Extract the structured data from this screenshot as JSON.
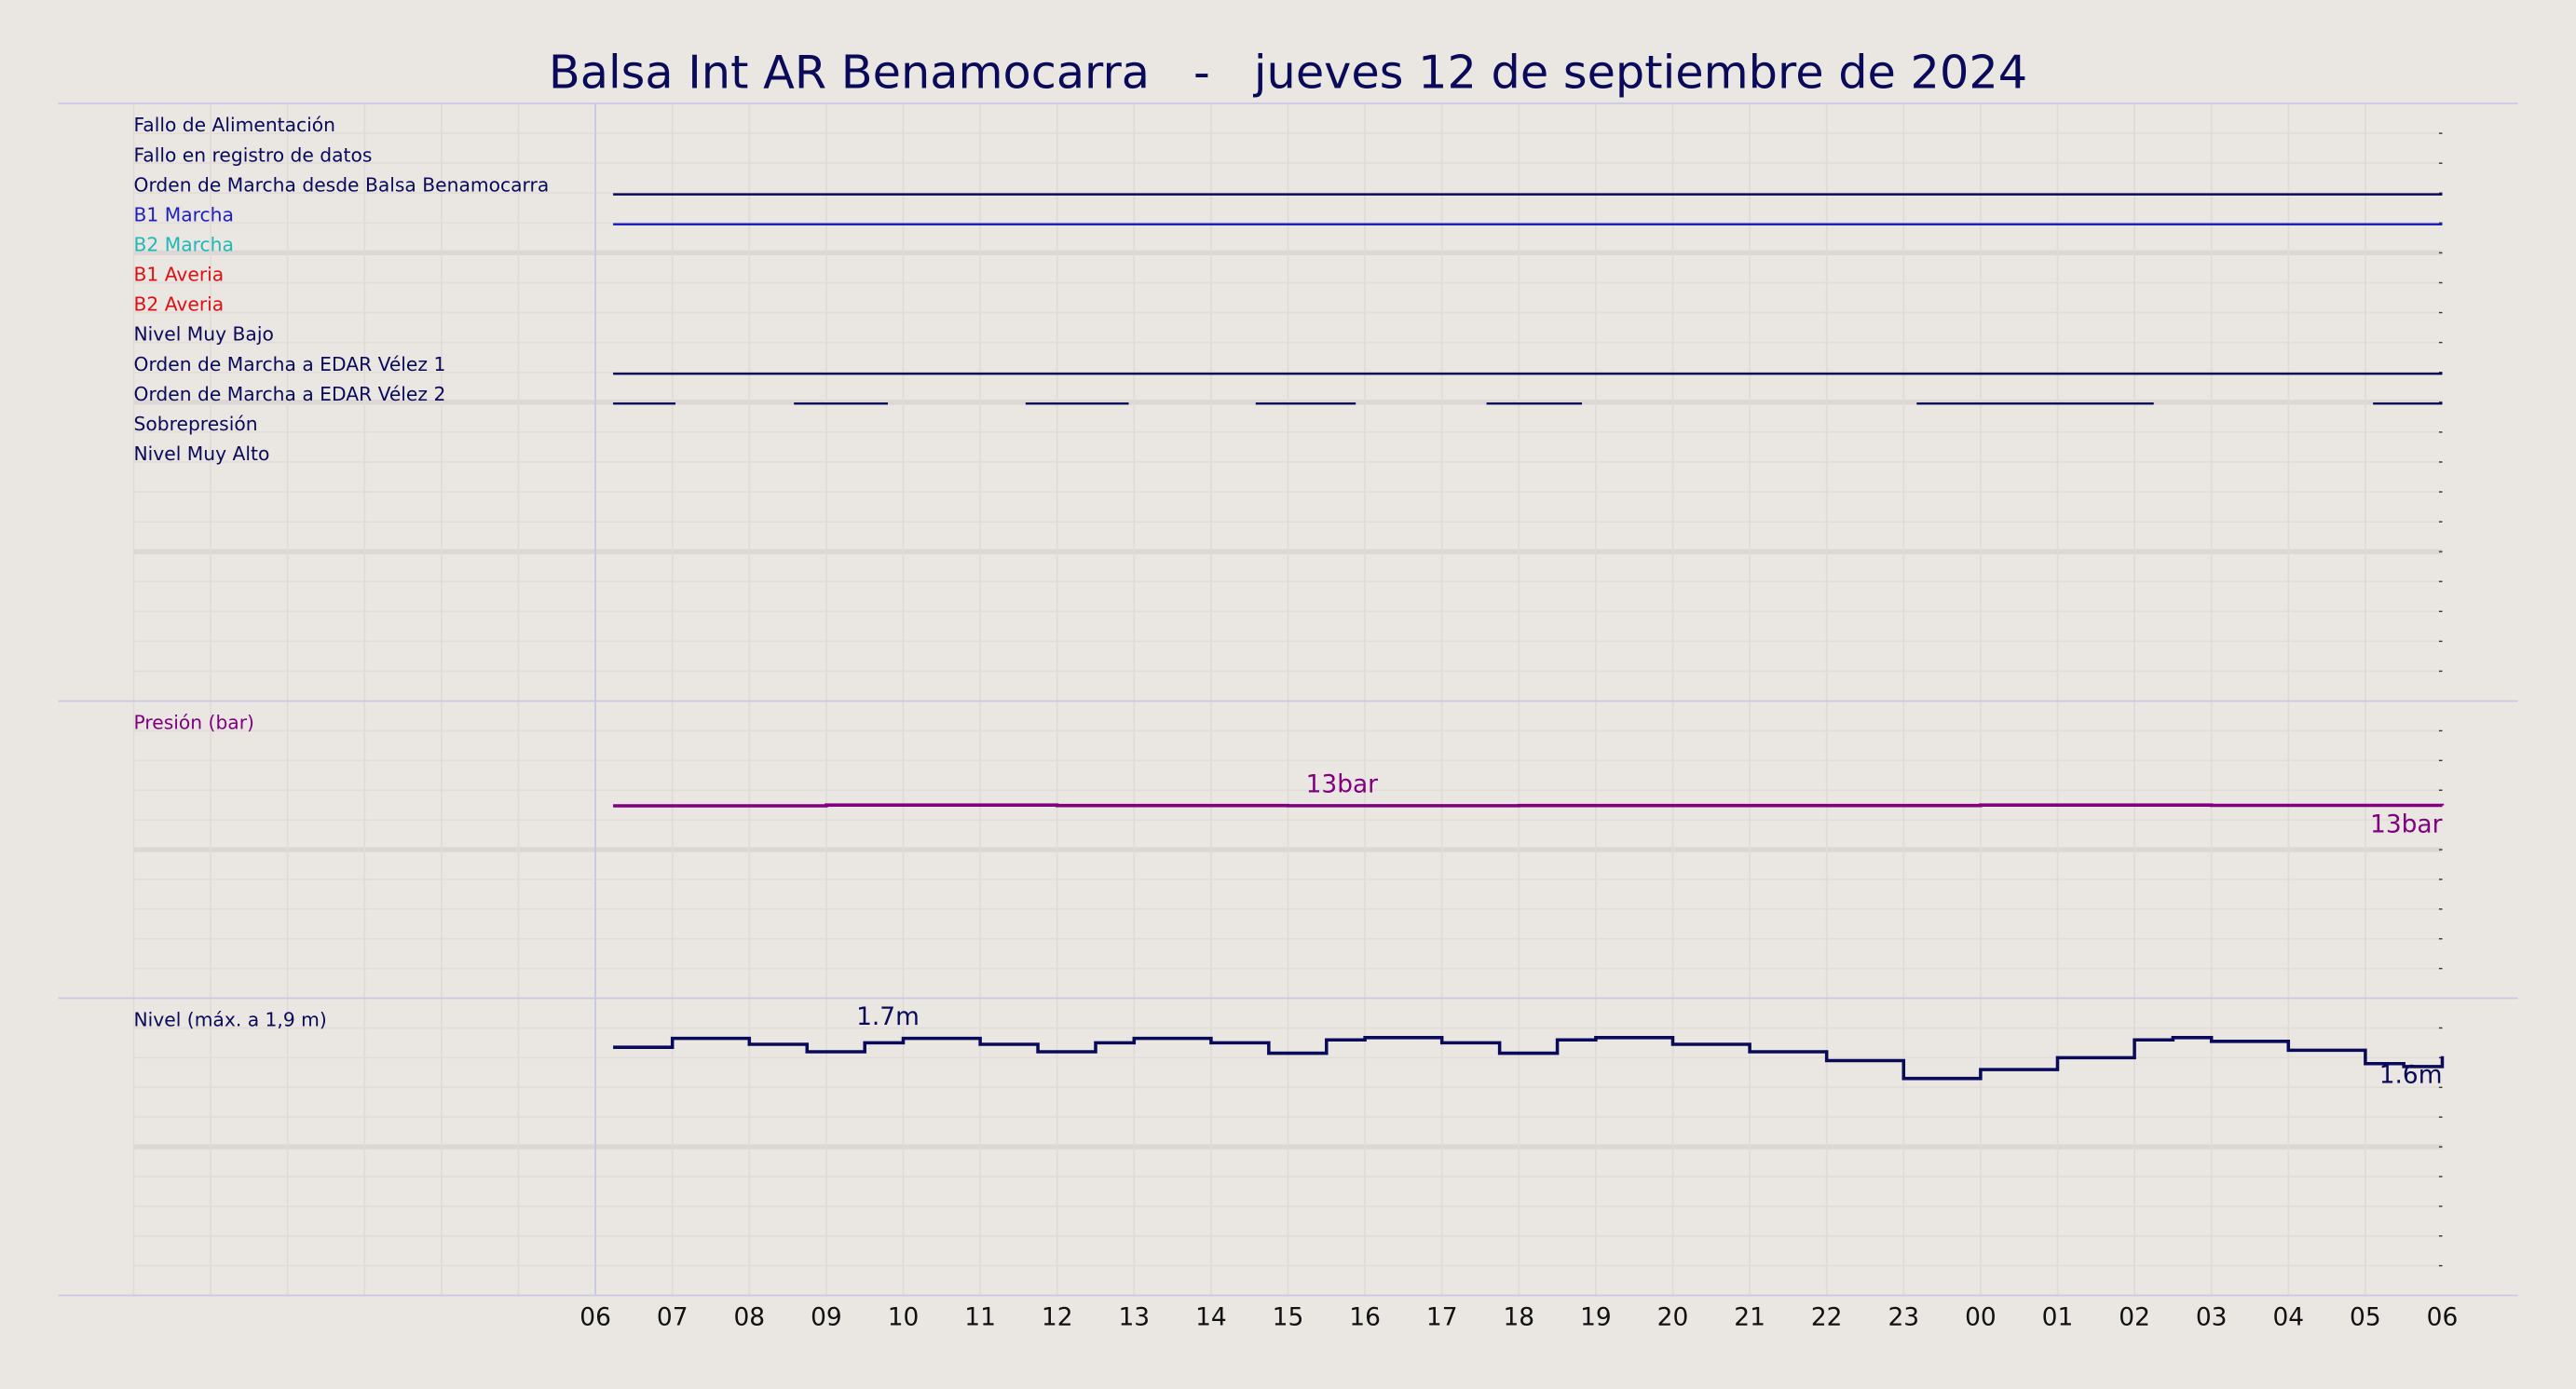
{
  "title": "Balsa Int AR Benamocarra   -   jueves 12 de septiembre de 2024",
  "chart_data": [
    {
      "type": "event",
      "xlim": [
        -6,
        24
      ],
      "series": [
        {
          "name": "Fallo de Alimentación",
          "color": "#0a0a5a",
          "segments": []
        },
        {
          "name": "Fallo en registro de datos",
          "color": "#0a0a5a",
          "segments": []
        },
        {
          "name": "Orden de Marcha desde Balsa Benamocarra",
          "color": "#0a0a5a",
          "segments": [
            [
              0.23,
              24
            ]
          ]
        },
        {
          "name": "B1 Marcha",
          "color": "#2020c0",
          "segments": [
            [
              0.23,
              24
            ]
          ]
        },
        {
          "name": "B2 Marcha",
          "color": "#20b8b8",
          "segments": []
        },
        {
          "name": "B1 Averia",
          "color": "#dd1111",
          "segments": []
        },
        {
          "name": "B2 Averia",
          "color": "#dd1111",
          "segments": []
        },
        {
          "name": "Nivel Muy Bajo",
          "color": "#0a0a5a",
          "segments": []
        },
        {
          "name": "Orden de Marcha a EDAR Vélez 1",
          "color": "#0a0a5a",
          "segments": [
            [
              0.23,
              24
            ]
          ]
        },
        {
          "name": "Orden de Marcha a EDAR Vélez 2",
          "color": "#0a0a5a",
          "segments": [
            [
              0.23,
              1.04
            ],
            [
              2.58,
              3.8
            ],
            [
              5.59,
              6.93
            ],
            [
              8.58,
              9.88
            ],
            [
              11.58,
              12.82
            ],
            [
              17.17,
              20.25
            ],
            [
              23.1,
              24
            ]
          ]
        },
        {
          "name": "Sobrepresión",
          "color": "#0a0a5a",
          "segments": []
        },
        {
          "name": "Nivel Muy Alto",
          "color": "#0a0a5a",
          "segments": []
        }
      ]
    },
    {
      "type": "step",
      "ylabel": "Presión (bar)",
      "color": "#800080",
      "xlim": [
        -6,
        24
      ],
      "ylim": [
        0,
        20
      ],
      "x": [
        0.23,
        3,
        6,
        9,
        12,
        15,
        18,
        21,
        24
      ],
      "values": [
        12.95,
        13,
        12.97,
        12.96,
        12.97,
        12.97,
        13,
        12.98,
        12.97
      ],
      "annotations": [
        {
          "x": 9.7,
          "value": 13,
          "label": "13bar"
        },
        {
          "x": 24,
          "value": 12.97,
          "label": "13bar"
        }
      ]
    },
    {
      "type": "step",
      "ylabel": "Nivel (máx. a 1,9 m)",
      "color": "#0a0a5a",
      "xlim": [
        -6,
        24
      ],
      "ylim": [
        0,
        2
      ],
      "x": [
        0.23,
        1,
        2,
        2.75,
        3.5,
        4,
        5,
        5.75,
        6.5,
        7,
        8,
        8.75,
        9.5,
        10,
        11,
        11.75,
        12.5,
        13,
        14,
        15,
        16,
        17,
        17.5,
        18,
        19,
        20,
        20.5,
        21,
        22,
        23,
        23.5,
        24
      ],
      "values": [
        1.67,
        1.73,
        1.69,
        1.64,
        1.7,
        1.73,
        1.69,
        1.64,
        1.7,
        1.73,
        1.7,
        1.63,
        1.72,
        1.735,
        1.7,
        1.63,
        1.72,
        1.735,
        1.69,
        1.64,
        1.58,
        1.46,
        1.46,
        1.52,
        1.6,
        1.72,
        1.735,
        1.71,
        1.65,
        1.56,
        1.54,
        1.61
      ],
      "annotations": [
        {
          "x": 3.8,
          "value": 1.735,
          "label": "1.7m"
        },
        {
          "x": 24,
          "value": 1.61,
          "label": "1.6m"
        }
      ],
      "xticks": [
        {
          "value": 0,
          "label": "06"
        },
        {
          "value": 1,
          "label": "07"
        },
        {
          "value": 2,
          "label": "08"
        },
        {
          "value": 3,
          "label": "09"
        },
        {
          "value": 4,
          "label": "10"
        },
        {
          "value": 5,
          "label": "11"
        },
        {
          "value": 6,
          "label": "12"
        },
        {
          "value": 7,
          "label": "13"
        },
        {
          "value": 8,
          "label": "14"
        },
        {
          "value": 9,
          "label": "15"
        },
        {
          "value": 10,
          "label": "16"
        },
        {
          "value": 11,
          "label": "17"
        },
        {
          "value": 12,
          "label": "18"
        },
        {
          "value": 13,
          "label": "19"
        },
        {
          "value": 14,
          "label": "20"
        },
        {
          "value": 15,
          "label": "21"
        },
        {
          "value": 16,
          "label": "22"
        },
        {
          "value": 17,
          "label": "23"
        },
        {
          "value": 18,
          "label": "00"
        },
        {
          "value": 19,
          "label": "01"
        },
        {
          "value": 20,
          "label": "02"
        },
        {
          "value": 21,
          "label": "03"
        },
        {
          "value": 22,
          "label": "04"
        },
        {
          "value": 23,
          "label": "05"
        },
        {
          "value": 24,
          "label": "06"
        }
      ]
    }
  ]
}
